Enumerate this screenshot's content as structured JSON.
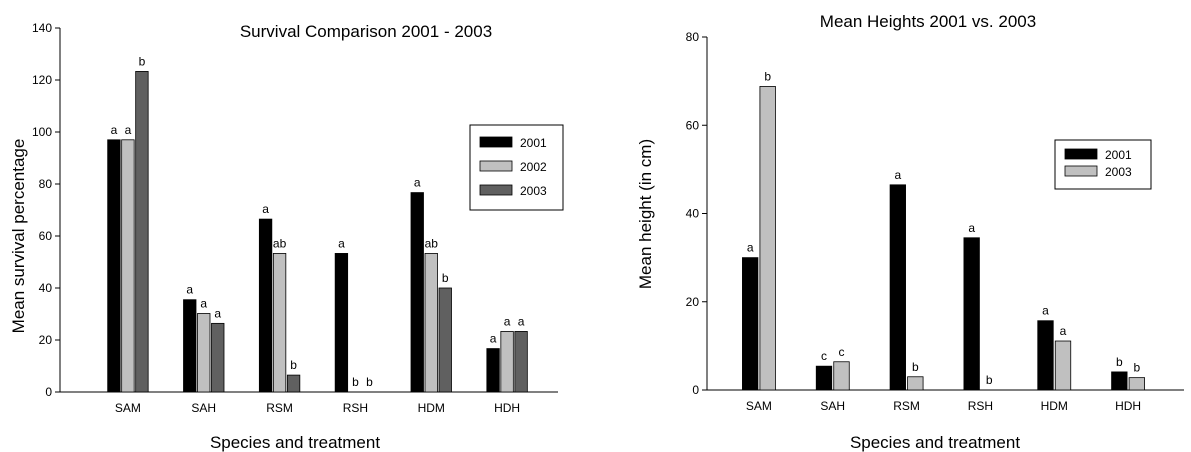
{
  "chart_data": [
    {
      "type": "bar",
      "title": "Survival Comparison 2001 - 2003",
      "xlabel": "Species and treatment",
      "ylabel": "Mean survival percentage",
      "ylim": [
        0,
        140
      ],
      "yticks": [
        0,
        20,
        40,
        60,
        80,
        100,
        120,
        140
      ],
      "categories": [
        "SAM",
        "SAH",
        "RSM",
        "RSH",
        "HDM",
        "HDH"
      ],
      "legend_position": "top-right",
      "grid": false,
      "series": [
        {
          "name": "2001",
          "color": "#000000",
          "values": [
            97,
            35.5,
            66.5,
            53.3,
            76.7,
            16.7
          ],
          "labels": [
            "a",
            "a",
            "a",
            "a",
            "a",
            "a"
          ]
        },
        {
          "name": "2002",
          "color": "#c0c0c0",
          "values": [
            97,
            30.2,
            53.3,
            0,
            53.3,
            23.3
          ],
          "labels": [
            "a",
            "a",
            "ab",
            "b",
            "ab",
            "a"
          ]
        },
        {
          "name": "2003",
          "color": "#606060",
          "values": [
            123.3,
            26.4,
            6.5,
            0,
            40,
            23.3
          ],
          "labels": [
            "b",
            "a",
            "b",
            "b",
            "b",
            "a"
          ]
        }
      ]
    },
    {
      "type": "bar",
      "title": "Mean Heights 2001 vs. 2003",
      "xlabel": "Species and treatment",
      "ylabel": "Mean height (in cm)",
      "ylim": [
        0,
        80
      ],
      "yticks": [
        0,
        20,
        40,
        60,
        80
      ],
      "categories": [
        "SAM",
        "SAH",
        "RSM",
        "RSH",
        "HDM",
        "HDH"
      ],
      "legend_position": "right",
      "grid": false,
      "series": [
        {
          "name": "2001",
          "color": "#000000",
          "values": [
            30,
            5.4,
            46.5,
            34.5,
            15.7,
            4.1
          ],
          "labels": [
            "a",
            "c",
            "a",
            "a",
            "a",
            "b"
          ]
        },
        {
          "name": "2003",
          "color": "#c0c0c0",
          "values": [
            68.8,
            6.4,
            3,
            0,
            11.1,
            2.8
          ],
          "labels": [
            "b",
            "c",
            "b",
            "b",
            "a",
            "b"
          ]
        }
      ]
    }
  ]
}
